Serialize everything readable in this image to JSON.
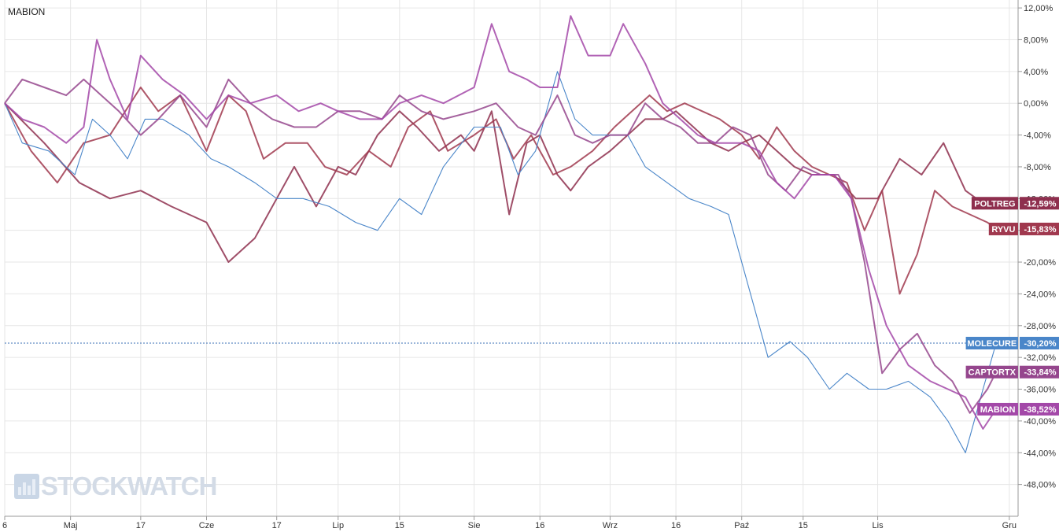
{
  "chart_data": {
    "type": "line",
    "title": "MABION",
    "y_unit": "%",
    "ylim": [
      -52,
      13
    ],
    "yticks": [
      12,
      8,
      4,
      0,
      -4,
      -8,
      -12,
      -16,
      -20,
      -24,
      -28,
      -32,
      -36,
      -40,
      -44,
      -48
    ],
    "ytick_labels": [
      "12,00%",
      "8,00%",
      "4,00%",
      "0,00%",
      "-4,00%",
      "-8,00%",
      "-12,00%",
      "-16,00%",
      "-20,00%",
      "-24,00%",
      "-28,00%",
      "-32,00%",
      "-36,00%",
      "-40,00%",
      "-44,00%",
      "-48,00%"
    ],
    "xlim": [
      "2024-04-16",
      "2024-12-03"
    ],
    "xtick_labels": [
      {
        "date": "2024-04-16",
        "label": "6"
      },
      {
        "date": "2024-05-01",
        "label": "Maj"
      },
      {
        "date": "2024-05-17",
        "label": "17"
      },
      {
        "date": "2024-06-01",
        "label": "Cze"
      },
      {
        "date": "2024-06-17",
        "label": "17"
      },
      {
        "date": "2024-07-01",
        "label": "Lip"
      },
      {
        "date": "2024-07-15",
        "label": "15"
      },
      {
        "date": "2024-08-01",
        "label": "Sie"
      },
      {
        "date": "2024-08-16",
        "label": "16"
      },
      {
        "date": "2024-09-01",
        "label": "Wrz"
      },
      {
        "date": "2024-09-16",
        "label": "16"
      },
      {
        "date": "2024-10-01",
        "label": "Paź"
      },
      {
        "date": "2024-10-15",
        "label": "15"
      },
      {
        "date": "2024-11-01",
        "label": "Lis"
      },
      {
        "date": "2024-12-01",
        "label": "Gru"
      }
    ],
    "grid": true,
    "reference_line": -30.2,
    "series": [
      {
        "name": "POLTREG",
        "color": "#8e2f4e",
        "last_label": "-12,59%",
        "points": [
          [
            "2024-04-16",
            0
          ],
          [
            "2024-04-25",
            -5
          ],
          [
            "2024-05-03",
            -10
          ],
          [
            "2024-05-10",
            -12
          ],
          [
            "2024-05-17",
            -11
          ],
          [
            "2024-05-24",
            -13
          ],
          [
            "2024-06-01",
            -15
          ],
          [
            "2024-06-06",
            -20
          ],
          [
            "2024-06-12",
            -17
          ],
          [
            "2024-06-17",
            -12
          ],
          [
            "2024-06-21",
            -8
          ],
          [
            "2024-06-26",
            -13
          ],
          [
            "2024-07-01",
            -8
          ],
          [
            "2024-07-05",
            -9
          ],
          [
            "2024-07-10",
            -4
          ],
          [
            "2024-07-15",
            -1
          ],
          [
            "2024-07-19",
            -3
          ],
          [
            "2024-07-24",
            -6
          ],
          [
            "2024-07-29",
            -4
          ],
          [
            "2024-08-01",
            -6
          ],
          [
            "2024-08-05",
            -1
          ],
          [
            "2024-08-09",
            -14
          ],
          [
            "2024-08-13",
            -5
          ],
          [
            "2024-08-16",
            -4
          ],
          [
            "2024-08-20",
            -9
          ],
          [
            "2024-08-23",
            -11
          ],
          [
            "2024-08-27",
            -8
          ],
          [
            "2024-09-01",
            -6
          ],
          [
            "2024-09-05",
            -4
          ],
          [
            "2024-09-09",
            -2
          ],
          [
            "2024-09-13",
            -2
          ],
          [
            "2024-09-16",
            -1
          ],
          [
            "2024-09-20",
            -3
          ],
          [
            "2024-09-24",
            -5
          ],
          [
            "2024-09-28",
            -6
          ],
          [
            "2024-10-01",
            -5
          ],
          [
            "2024-10-05",
            -4
          ],
          [
            "2024-10-09",
            -6
          ],
          [
            "2024-10-13",
            -8
          ],
          [
            "2024-10-17",
            -9
          ],
          [
            "2024-10-22",
            -9
          ],
          [
            "2024-10-27",
            -12
          ],
          [
            "2024-11-01",
            -12
          ],
          [
            "2024-11-06",
            -7
          ],
          [
            "2024-11-11",
            -9
          ],
          [
            "2024-11-16",
            -5
          ],
          [
            "2024-11-21",
            -11
          ],
          [
            "2024-11-26",
            -13
          ],
          [
            "2024-11-28",
            -12.59
          ]
        ]
      },
      {
        "name": "RYVU",
        "color": "#a0384e",
        "last_label": "-15,83%",
        "points": [
          [
            "2024-04-16",
            0
          ],
          [
            "2024-04-22",
            -6
          ],
          [
            "2024-04-28",
            -10
          ],
          [
            "2024-05-04",
            -5
          ],
          [
            "2024-05-10",
            -4
          ],
          [
            "2024-05-17",
            2
          ],
          [
            "2024-05-21",
            -1
          ],
          [
            "2024-05-26",
            1
          ],
          [
            "2024-06-01",
            -6
          ],
          [
            "2024-06-06",
            1
          ],
          [
            "2024-06-10",
            -1
          ],
          [
            "2024-06-14",
            -7
          ],
          [
            "2024-06-19",
            -5
          ],
          [
            "2024-06-24",
            -5
          ],
          [
            "2024-06-28",
            -8
          ],
          [
            "2024-07-03",
            -9
          ],
          [
            "2024-07-08",
            -6
          ],
          [
            "2024-07-13",
            -8
          ],
          [
            "2024-07-17",
            -3
          ],
          [
            "2024-07-22",
            -1
          ],
          [
            "2024-07-26",
            -6
          ],
          [
            "2024-08-01",
            -4
          ],
          [
            "2024-08-06",
            -2
          ],
          [
            "2024-08-10",
            -7
          ],
          [
            "2024-08-14",
            -4
          ],
          [
            "2024-08-19",
            -9
          ],
          [
            "2024-08-23",
            -8
          ],
          [
            "2024-08-28",
            -6
          ],
          [
            "2024-09-02",
            -3
          ],
          [
            "2024-09-06",
            -1
          ],
          [
            "2024-09-10",
            1
          ],
          [
            "2024-09-14",
            -1
          ],
          [
            "2024-09-18",
            0
          ],
          [
            "2024-09-22",
            -1
          ],
          [
            "2024-09-26",
            -2
          ],
          [
            "2024-10-01",
            -4
          ],
          [
            "2024-10-05",
            -7
          ],
          [
            "2024-10-09",
            -3
          ],
          [
            "2024-10-13",
            -6
          ],
          [
            "2024-10-17",
            -8
          ],
          [
            "2024-10-21",
            -9
          ],
          [
            "2024-10-25",
            -10
          ],
          [
            "2024-10-29",
            -16
          ],
          [
            "2024-11-02",
            -11
          ],
          [
            "2024-11-06",
            -24
          ],
          [
            "2024-11-10",
            -19
          ],
          [
            "2024-11-14",
            -11
          ],
          [
            "2024-11-18",
            -13
          ],
          [
            "2024-11-22",
            -14
          ],
          [
            "2024-11-26",
            -15
          ],
          [
            "2024-11-28",
            -15.83
          ]
        ]
      },
      {
        "name": "MOLECURE",
        "color": "#4a86c9",
        "last_label": "-30,20%",
        "points": [
          [
            "2024-04-16",
            0
          ],
          [
            "2024-04-20",
            -5
          ],
          [
            "2024-04-26",
            -6
          ],
          [
            "2024-05-02",
            -9
          ],
          [
            "2024-05-06",
            -2
          ],
          [
            "2024-05-10",
            -4
          ],
          [
            "2024-05-14",
            -7
          ],
          [
            "2024-05-18",
            -2
          ],
          [
            "2024-05-22",
            -2
          ],
          [
            "2024-05-28",
            -4
          ],
          [
            "2024-06-02",
            -7
          ],
          [
            "2024-06-06",
            -8
          ],
          [
            "2024-06-12",
            -10
          ],
          [
            "2024-06-17",
            -12
          ],
          [
            "2024-06-23",
            -12
          ],
          [
            "2024-06-29",
            -13
          ],
          [
            "2024-07-05",
            -15
          ],
          [
            "2024-07-10",
            -16
          ],
          [
            "2024-07-15",
            -12
          ],
          [
            "2024-07-20",
            -14
          ],
          [
            "2024-07-25",
            -8
          ],
          [
            "2024-08-01",
            -3
          ],
          [
            "2024-08-07",
            -3
          ],
          [
            "2024-08-11",
            -9
          ],
          [
            "2024-08-15",
            -6
          ],
          [
            "2024-08-20",
            4
          ],
          [
            "2024-08-24",
            -2
          ],
          [
            "2024-08-28",
            -4
          ],
          [
            "2024-09-01",
            -4
          ],
          [
            "2024-09-05",
            -4
          ],
          [
            "2024-09-09",
            -8
          ],
          [
            "2024-09-14",
            -10
          ],
          [
            "2024-09-19",
            -12
          ],
          [
            "2024-09-24",
            -13
          ],
          [
            "2024-09-28",
            -14
          ],
          [
            "2024-10-01",
            -20
          ],
          [
            "2024-10-04",
            -26
          ],
          [
            "2024-10-07",
            -32
          ],
          [
            "2024-10-12",
            -30
          ],
          [
            "2024-10-16",
            -32
          ],
          [
            "2024-10-21",
            -36
          ],
          [
            "2024-10-25",
            -34
          ],
          [
            "2024-10-30",
            -36
          ],
          [
            "2024-11-03",
            -36
          ],
          [
            "2024-11-08",
            -35
          ],
          [
            "2024-11-13",
            -37
          ],
          [
            "2024-11-17",
            -40
          ],
          [
            "2024-11-21",
            -44
          ],
          [
            "2024-11-25",
            -36
          ],
          [
            "2024-11-28",
            -30.2
          ]
        ]
      },
      {
        "name": "CAPTORTX",
        "color": "#95468d",
        "last_label": "-33,84%",
        "points": [
          [
            "2024-04-16",
            0
          ],
          [
            "2024-04-20",
            3
          ],
          [
            "2024-04-25",
            2
          ],
          [
            "2024-04-30",
            1
          ],
          [
            "2024-05-04",
            3
          ],
          [
            "2024-05-08",
            1
          ],
          [
            "2024-05-12",
            -1
          ],
          [
            "2024-05-17",
            -4
          ],
          [
            "2024-05-21",
            -2
          ],
          [
            "2024-05-26",
            1
          ],
          [
            "2024-06-01",
            -3
          ],
          [
            "2024-06-06",
            3
          ],
          [
            "2024-06-11",
            0
          ],
          [
            "2024-06-16",
            -2
          ],
          [
            "2024-06-21",
            -3
          ],
          [
            "2024-06-26",
            -3
          ],
          [
            "2024-07-01",
            -1
          ],
          [
            "2024-07-06",
            -1
          ],
          [
            "2024-07-11",
            -2
          ],
          [
            "2024-07-15",
            1
          ],
          [
            "2024-07-20",
            -1
          ],
          [
            "2024-07-25",
            -2
          ],
          [
            "2024-08-01",
            -1
          ],
          [
            "2024-08-06",
            0
          ],
          [
            "2024-08-11",
            -3
          ],
          [
            "2024-08-15",
            -4
          ],
          [
            "2024-08-20",
            1
          ],
          [
            "2024-08-24",
            -4
          ],
          [
            "2024-08-28",
            -5
          ],
          [
            "2024-09-01",
            -4
          ],
          [
            "2024-09-05",
            -4
          ],
          [
            "2024-09-09",
            0
          ],
          [
            "2024-09-13",
            -2
          ],
          [
            "2024-09-17",
            -3
          ],
          [
            "2024-09-21",
            -5
          ],
          [
            "2024-09-25",
            -5
          ],
          [
            "2024-09-29",
            -3
          ],
          [
            "2024-10-03",
            -4
          ],
          [
            "2024-10-07",
            -9
          ],
          [
            "2024-10-11",
            -11
          ],
          [
            "2024-10-15",
            -8
          ],
          [
            "2024-10-19",
            -9
          ],
          [
            "2024-10-23",
            -9
          ],
          [
            "2024-10-26",
            -12
          ],
          [
            "2024-10-29",
            -20
          ],
          [
            "2024-11-02",
            -34
          ],
          [
            "2024-11-06",
            -31
          ],
          [
            "2024-11-10",
            -29
          ],
          [
            "2024-11-14",
            -33
          ],
          [
            "2024-11-18",
            -35
          ],
          [
            "2024-11-22",
            -39
          ],
          [
            "2024-11-26",
            -36
          ],
          [
            "2024-11-28",
            -33.84
          ]
        ]
      },
      {
        "name": "MABION",
        "color": "#a348a8",
        "last_label": "-38,52%",
        "points": [
          [
            "2024-04-16",
            0
          ],
          [
            "2024-04-20",
            -2
          ],
          [
            "2024-04-25",
            -3
          ],
          [
            "2024-04-30",
            -5
          ],
          [
            "2024-05-04",
            -3
          ],
          [
            "2024-05-07",
            8
          ],
          [
            "2024-05-10",
            3
          ],
          [
            "2024-05-14",
            -2
          ],
          [
            "2024-05-17",
            6
          ],
          [
            "2024-05-22",
            3
          ],
          [
            "2024-05-27",
            1
          ],
          [
            "2024-06-01",
            -2
          ],
          [
            "2024-06-06",
            1
          ],
          [
            "2024-06-11",
            0
          ],
          [
            "2024-06-17",
            1
          ],
          [
            "2024-06-22",
            -1
          ],
          [
            "2024-06-27",
            0
          ],
          [
            "2024-07-01",
            -1
          ],
          [
            "2024-07-06",
            -2
          ],
          [
            "2024-07-11",
            -2
          ],
          [
            "2024-07-15",
            0
          ],
          [
            "2024-07-20",
            1
          ],
          [
            "2024-07-25",
            0
          ],
          [
            "2024-08-01",
            2
          ],
          [
            "2024-08-05",
            10
          ],
          [
            "2024-08-09",
            4
          ],
          [
            "2024-08-13",
            3
          ],
          [
            "2024-08-16",
            2
          ],
          [
            "2024-08-20",
            2
          ],
          [
            "2024-08-23",
            11
          ],
          [
            "2024-08-27",
            6
          ],
          [
            "2024-09-01",
            6
          ],
          [
            "2024-09-04",
            10
          ],
          [
            "2024-09-09",
            5
          ],
          [
            "2024-09-13",
            0
          ],
          [
            "2024-09-17",
            -2
          ],
          [
            "2024-09-21",
            -4
          ],
          [
            "2024-09-25",
            -5
          ],
          [
            "2024-10-01",
            -5
          ],
          [
            "2024-10-05",
            -6
          ],
          [
            "2024-10-09",
            -10
          ],
          [
            "2024-10-13",
            -12
          ],
          [
            "2024-10-17",
            -9
          ],
          [
            "2024-10-22",
            -9
          ],
          [
            "2024-10-26",
            -12
          ],
          [
            "2024-10-30",
            -21
          ],
          [
            "2024-11-03",
            -28
          ],
          [
            "2024-11-08",
            -33
          ],
          [
            "2024-11-13",
            -35
          ],
          [
            "2024-11-17",
            -36
          ],
          [
            "2024-11-21",
            -37
          ],
          [
            "2024-11-25",
            -41
          ],
          [
            "2024-11-28",
            -38.52
          ]
        ]
      }
    ]
  },
  "watermark": "STOCKWATCH"
}
